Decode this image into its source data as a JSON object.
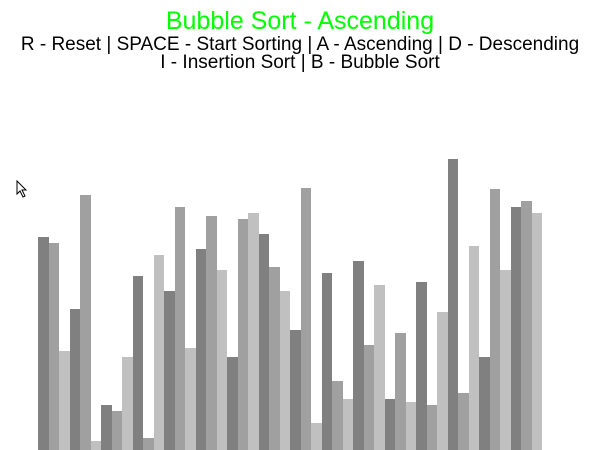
{
  "window": {
    "background": "#ffffff"
  },
  "header": {
    "title": "Bubble Sort - Ascending",
    "title_color": "#00ff00",
    "help_line_1": "R - Reset | SPACE - Start Sorting | A - Ascending | D - Descending",
    "help_line_2": "I - Insertion Sort | B - Bubble Sort"
  },
  "visualizer": {
    "bar_colors": [
      "#808080",
      "#a0a0a0",
      "#c0c0c0"
    ],
    "value_max": 300,
    "values": [
      213,
      207,
      99,
      141,
      255,
      9,
      45,
      39,
      93,
      174,
      12,
      195,
      159,
      243,
      102,
      201,
      234,
      180,
      93,
      231,
      237,
      216,
      183,
      159,
      120,
      262,
      27,
      177,
      69,
      51,
      189,
      105,
      165,
      51,
      117,
      48,
      168,
      45,
      138,
      291,
      57,
      204,
      93,
      261,
      180,
      243,
      249,
      237
    ]
  },
  "cursor": {
    "icon": "mouse-pointer-icon"
  }
}
